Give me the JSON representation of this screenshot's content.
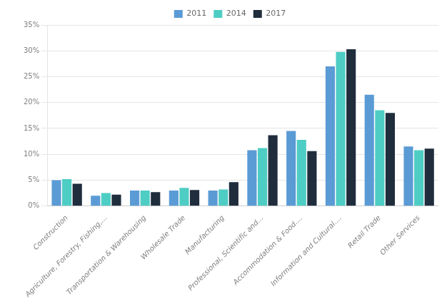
{
  "chart_data": {
    "type": "bar",
    "categories": [
      "Construction",
      "Agriculture, Forestry, Fishing,...",
      "Transportation & Warehousing",
      "Wholesale Trade",
      "Manufacturing",
      "Professional, Scientific and...",
      "Accommodation & Food....",
      "Information and Cultural....",
      "Retail Trade",
      "Other Services"
    ],
    "series": [
      {
        "name": "2011",
        "color": "#5b9bd5",
        "values": [
          5.0,
          2.0,
          3.0,
          3.0,
          3.0,
          10.8,
          14.5,
          27.0,
          21.5,
          11.5
        ]
      },
      {
        "name": "2014",
        "color": "#4ecdc4",
        "values": [
          5.2,
          2.5,
          3.0,
          3.5,
          3.2,
          11.2,
          12.8,
          29.8,
          18.5,
          10.8
        ]
      },
      {
        "name": "2017",
        "color": "#1f2d3d",
        "values": [
          4.3,
          2.2,
          2.7,
          3.1,
          4.6,
          13.7,
          10.6,
          30.3,
          18.0,
          11.1
        ]
      }
    ],
    "ylim": [
      0,
      35
    ],
    "yticks": [
      {
        "value": 0,
        "label": "0%"
      },
      {
        "value": 5,
        "label": "5%"
      },
      {
        "value": 10,
        "label": "10%"
      },
      {
        "value": 15,
        "label": "15%"
      },
      {
        "value": 20,
        "label": "20%"
      },
      {
        "value": 25,
        "label": "25%"
      },
      {
        "value": 30,
        "label": "30%"
      },
      {
        "value": 35,
        "label": "35%"
      }
    ],
    "grid": true,
    "legend": "top"
  }
}
